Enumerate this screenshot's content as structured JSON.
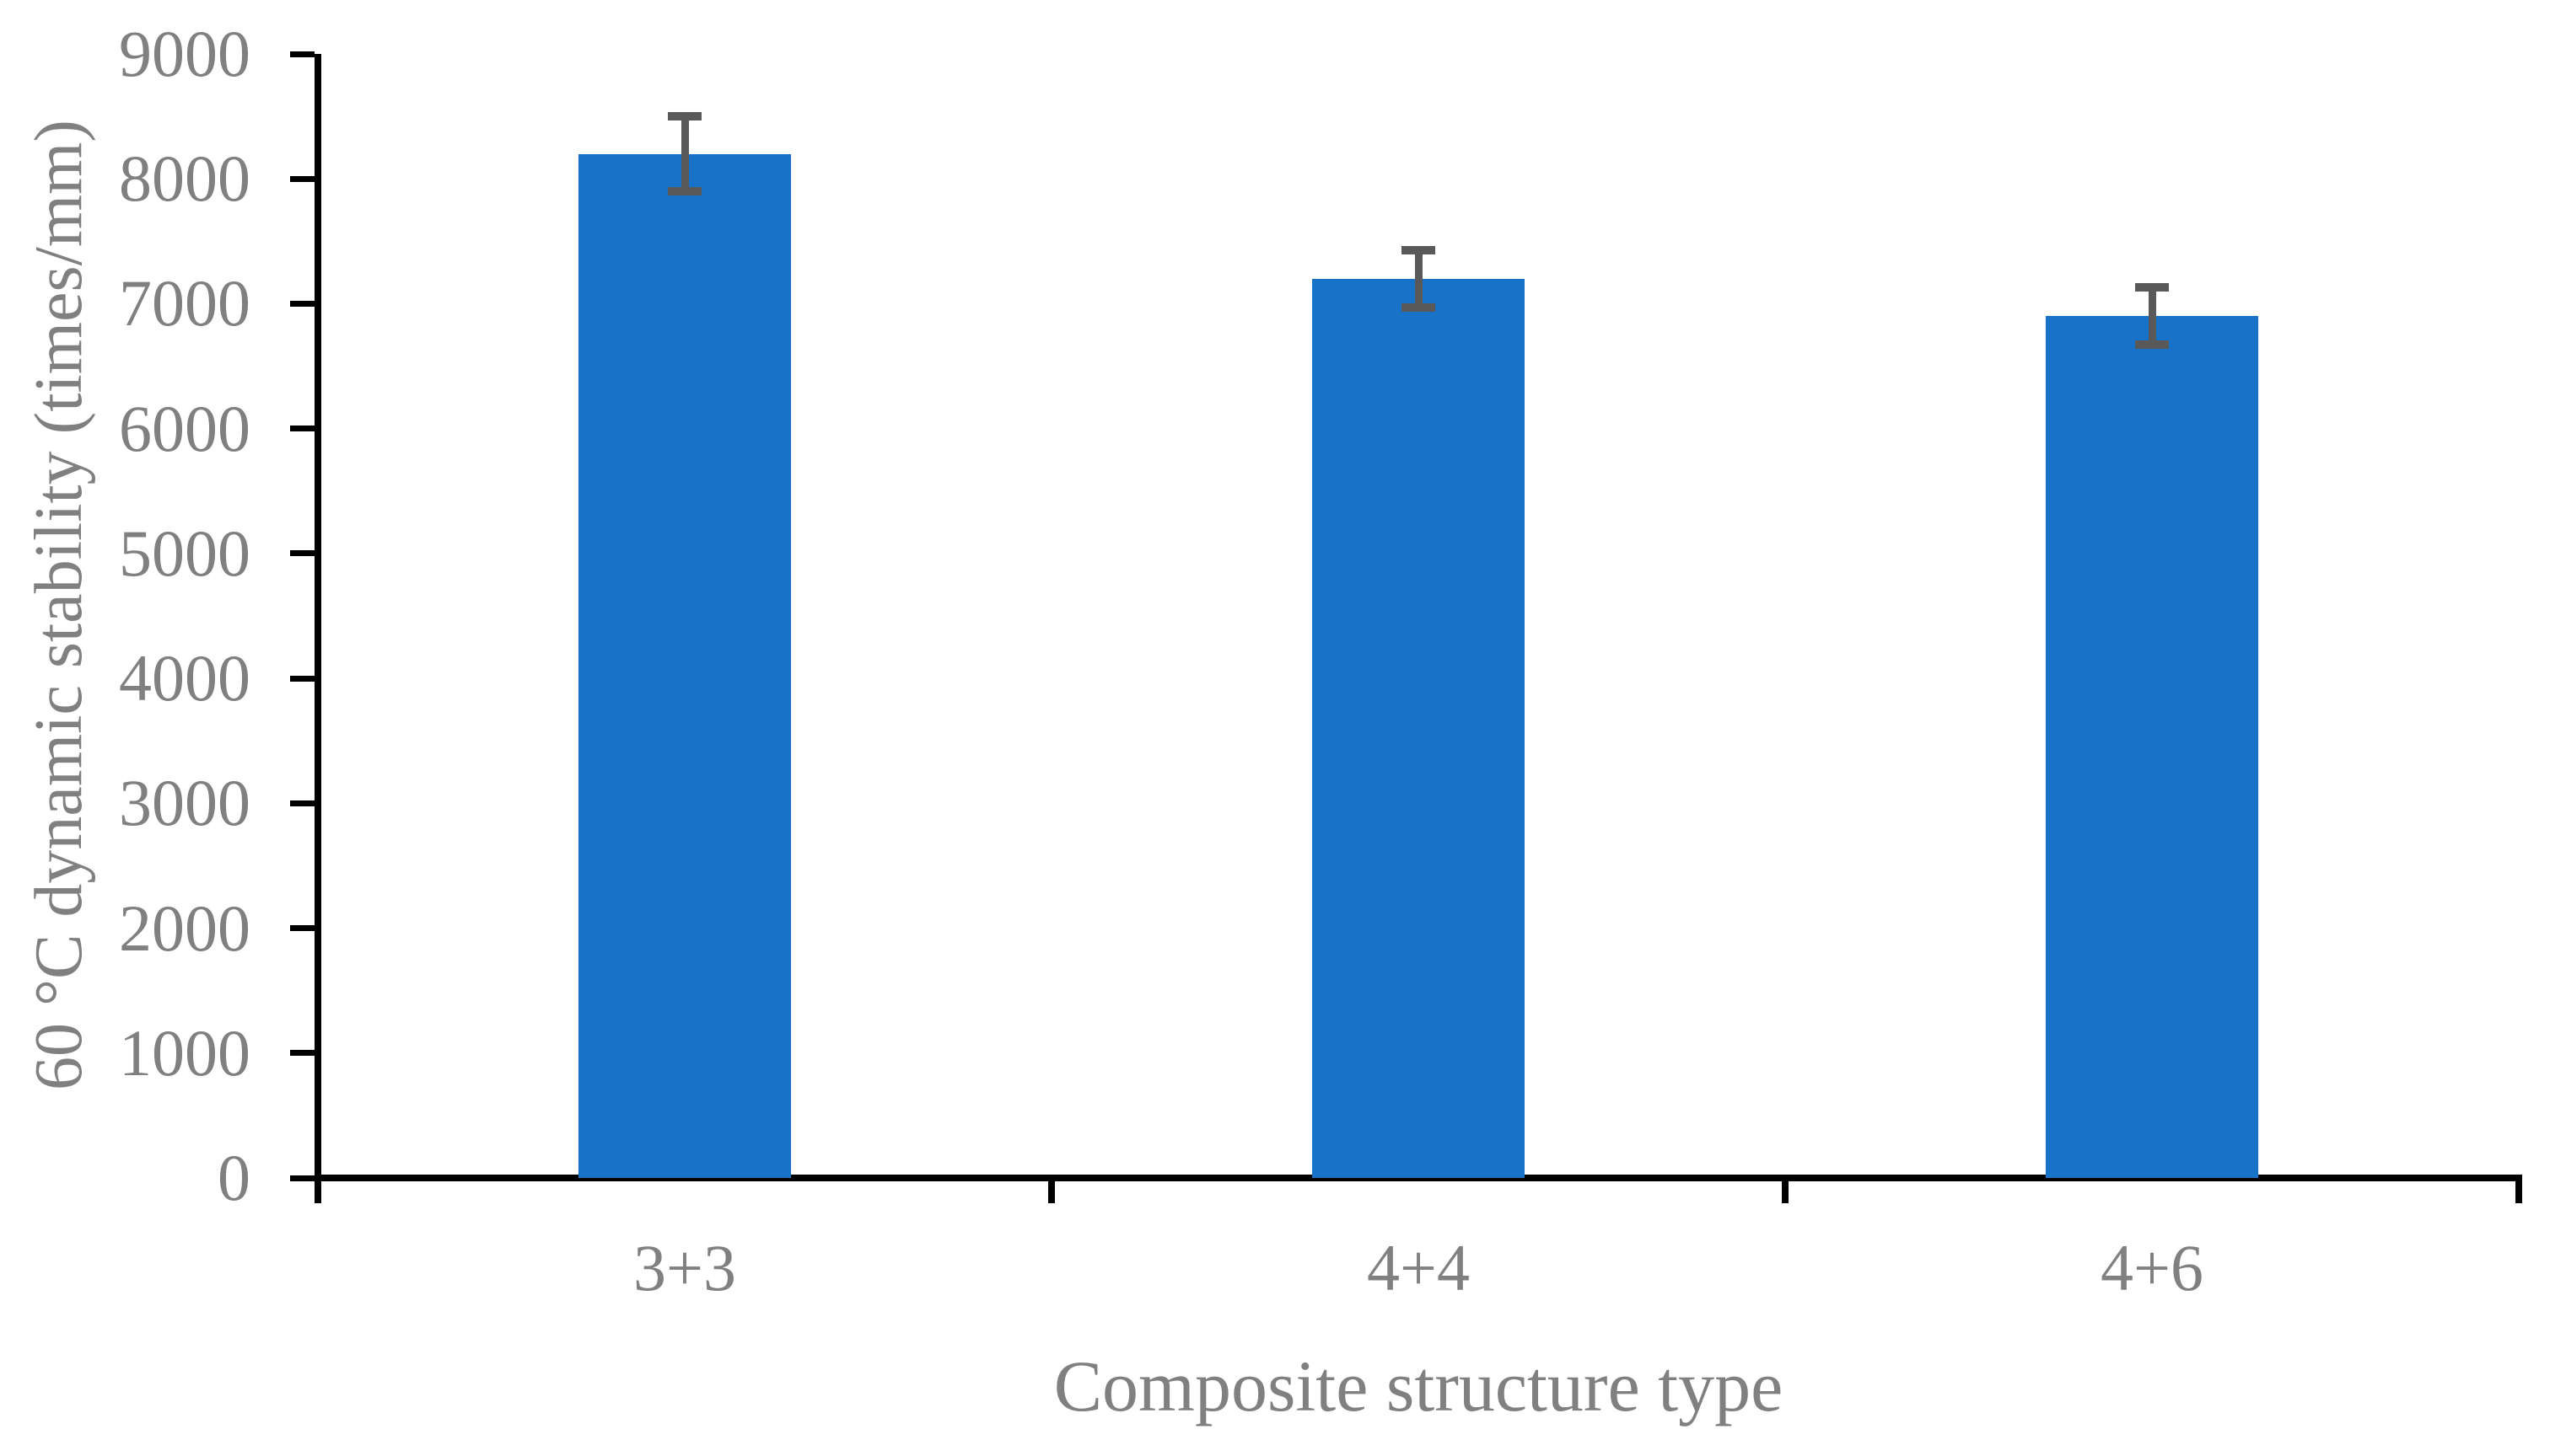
{
  "chart_data": {
    "type": "bar",
    "title": "",
    "xlabel": "Composite structure type",
    "ylabel": "60 °C dynamic stability (times/mm)",
    "categories": [
      "3+3",
      "4+4",
      "4+6"
    ],
    "values": [
      8200,
      7200,
      6900
    ],
    "errors": [
      300,
      230,
      230
    ],
    "ylim": [
      0,
      9000
    ],
    "ytick_step": 1000,
    "ytick_labels": [
      "0",
      "1000",
      "2000",
      "3000",
      "4000",
      "5000",
      "6000",
      "7000",
      "8000",
      "9000"
    ],
    "grid": false,
    "legend": "none",
    "colors": {
      "bar": "#1772C8",
      "error_bar": "#595959",
      "axis": "#000000",
      "text": "#808080",
      "background": "#FFFFFF"
    }
  }
}
